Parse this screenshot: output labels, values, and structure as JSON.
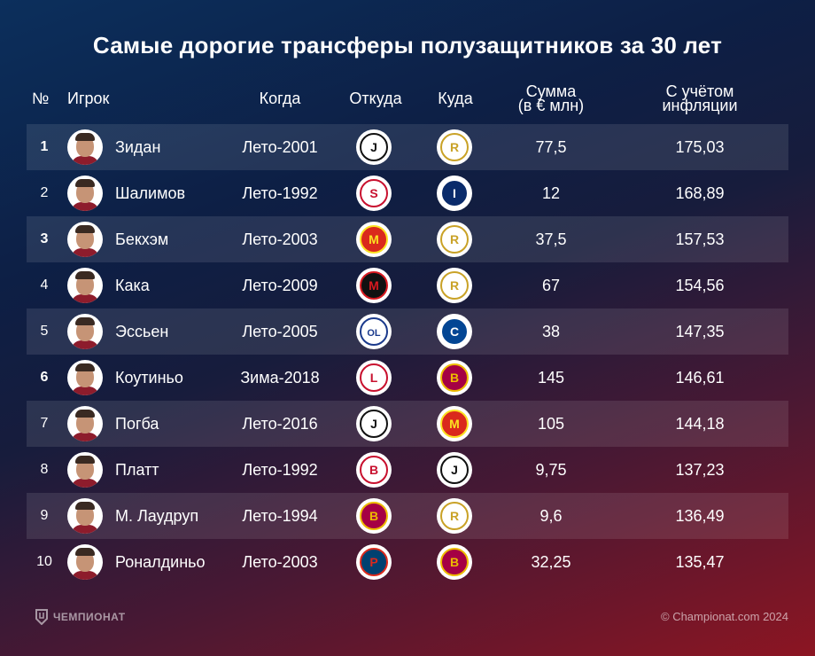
{
  "title": "Самые дорогие трансферы полузащитников за 30 лет",
  "headers": {
    "num": "№",
    "player": "Игрок",
    "when": "Когда",
    "from": "Откуда",
    "to": "Куда",
    "sum_line1": "Сумма",
    "sum_line2": "(в € млн)",
    "infl_line1": "С учётом",
    "infl_line2": "инфляции"
  },
  "clubs": {
    "juventus": {
      "bg": "#ffffff",
      "fg": "#111111",
      "text": "J"
    },
    "real": {
      "bg": "#ffffff",
      "fg": "#c9a227",
      "text": "R"
    },
    "spartak": {
      "bg": "#ffffff",
      "fg": "#c8102e",
      "text": "S"
    },
    "inter": {
      "bg": "#0a2b6b",
      "fg": "#ffffff",
      "text": "I"
    },
    "manutd": {
      "bg": "#da291c",
      "fg": "#fbe122",
      "text": "M"
    },
    "milan": {
      "bg": "#111111",
      "fg": "#d71920",
      "text": "M"
    },
    "lyon": {
      "bg": "#ffffff",
      "fg": "#1b3a8c",
      "text": "OL"
    },
    "chelsea": {
      "bg": "#034694",
      "fg": "#ffffff",
      "text": "C"
    },
    "liverpool": {
      "bg": "#ffffff",
      "fg": "#c8102e",
      "text": "L"
    },
    "barcelona": {
      "bg": "#a50044",
      "fg": "#edbb00",
      "text": "B"
    },
    "bari": {
      "bg": "#ffffff",
      "fg": "#c8102e",
      "text": "B"
    },
    "psg": {
      "bg": "#004170",
      "fg": "#da291c",
      "text": "P"
    }
  },
  "rows": [
    {
      "num": "1",
      "bold": true,
      "name": "Зидан",
      "when": "Лето-2001",
      "from": "juventus",
      "to": "real",
      "sum": "77,5",
      "infl": "175,03"
    },
    {
      "num": "2",
      "bold": false,
      "name": "Шалимов",
      "when": "Лето-1992",
      "from": "spartak",
      "to": "inter",
      "sum": "12",
      "infl": "168,89"
    },
    {
      "num": "3",
      "bold": true,
      "name": "Бекхэм",
      "when": "Лето-2003",
      "from": "manutd",
      "to": "real",
      "sum": "37,5",
      "infl": "157,53"
    },
    {
      "num": "4",
      "bold": false,
      "name": "Кака",
      "when": "Лето-2009",
      "from": "milan",
      "to": "real",
      "sum": "67",
      "infl": "154,56"
    },
    {
      "num": "5",
      "bold": false,
      "name": "Эссьен",
      "when": "Лето-2005",
      "from": "lyon",
      "to": "chelsea",
      "sum": "38",
      "infl": "147,35"
    },
    {
      "num": "6",
      "bold": true,
      "name": "Коутиньо",
      "when": "Зима-2018",
      "from": "liverpool",
      "to": "barcelona",
      "sum": "145",
      "infl": "146,61"
    },
    {
      "num": "7",
      "bold": false,
      "name": "Погба",
      "when": "Лето-2016",
      "from": "juventus",
      "to": "manutd",
      "sum": "105",
      "infl": "144,18"
    },
    {
      "num": "8",
      "bold": false,
      "name": "Платт",
      "when": "Лето-1992",
      "from": "bari",
      "to": "juventus",
      "sum": "9,75",
      "infl": "137,23"
    },
    {
      "num": "9",
      "bold": false,
      "name": "М. Лаудруп",
      "when": "Лето-1994",
      "from": "barcelona",
      "to": "real",
      "sum": "9,6",
      "infl": "136,49"
    },
    {
      "num": "10",
      "bold": false,
      "name": "Роналдиньо",
      "when": "Лето-2003",
      "from": "psg",
      "to": "barcelona",
      "sum": "32,25",
      "infl": "135,47"
    }
  ],
  "footer": {
    "brand": "ЧЕМПИОНАТ",
    "copyright": "© Championat.com 2024"
  }
}
